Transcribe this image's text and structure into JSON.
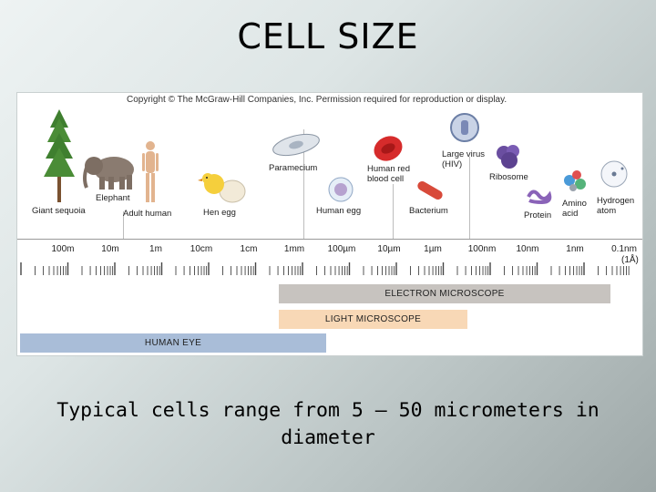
{
  "title": "CELL SIZE",
  "figure": {
    "copyright": "Copyright © The McGraw-Hill Companies, Inc. Permission required for reproduction or display.",
    "objects": {
      "giant_sequoia": "Giant sequoia",
      "elephant": "Elephant",
      "adult_human": "Adult human",
      "hen_egg": "Hen egg",
      "paramecium": "Paramecium",
      "human_egg": "Human egg",
      "red_blood_cell_1": "Human red",
      "red_blood_cell_2": "blood cell",
      "bacterium": "Bacterium",
      "large_virus_1": "Large virus",
      "large_virus_2": "(HIV)",
      "ribosome": "Ribosome",
      "protein": "Protein",
      "amino_acid_1": "Amino",
      "amino_acid_2": "acid",
      "hydrogen_atom_1": "Hydrogen",
      "hydrogen_atom_2": "atom"
    },
    "scale": [
      "100m",
      "10m",
      "1m",
      "10cm",
      "1cm",
      "1mm",
      "100µm",
      "10µm",
      "1µm",
      "100nm",
      "10nm",
      "1nm",
      "0.1nm"
    ],
    "scale_extra": "(1Å)",
    "ranges": {
      "electron_microscope": "ELECTRON MICROSCOPE",
      "light_microscope": "LIGHT MICROSCOPE",
      "human_eye": "HUMAN EYE"
    }
  },
  "caption": {
    "line1": "Typical cells range from 5 – 50 micrometers in",
    "line2": "diameter"
  }
}
